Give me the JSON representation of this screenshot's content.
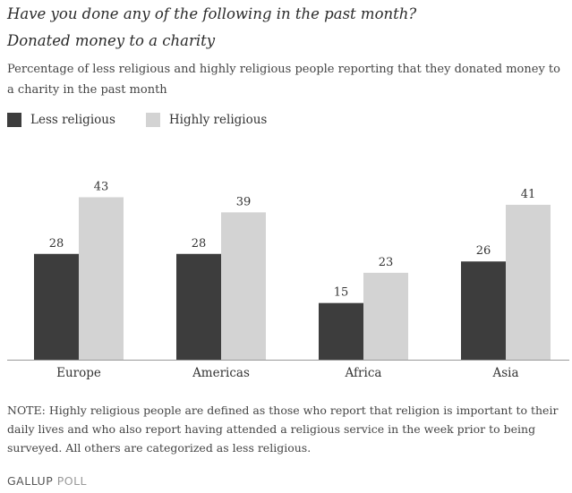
{
  "title": "Have you done any of the following in the past month?",
  "subtitle": "Donated money to a charity",
  "description": "Percentage of less religious and highly religious people reporting that they donated money to a charity in the past month",
  "note": "NOTE: Highly religious people are defined as those who report that religion is important to their daily lives and who also report having attended a religious service in the week prior to being surveyed. All others are categorized as less religious.",
  "footer": {
    "brand": "GALLUP",
    "suffix": "POLL"
  },
  "chart_data": {
    "type": "bar",
    "categories": [
      "Europe",
      "Americas",
      "Africa",
      "Asia"
    ],
    "series": [
      {
        "name": "Less religious",
        "values": [
          28,
          28,
          15,
          26
        ],
        "color": "#3d3d3d"
      },
      {
        "name": "Highly religious",
        "values": [
          43,
          39,
          23,
          41
        ],
        "color": "#d3d3d3"
      }
    ],
    "title": "Have you done any of the following in the past month?",
    "subtitle": "Donated money to a charity",
    "xlabel": "",
    "ylabel": "",
    "ylim": [
      0,
      45
    ],
    "grid": false,
    "legend": "top-left",
    "axis_color": "#999999"
  }
}
